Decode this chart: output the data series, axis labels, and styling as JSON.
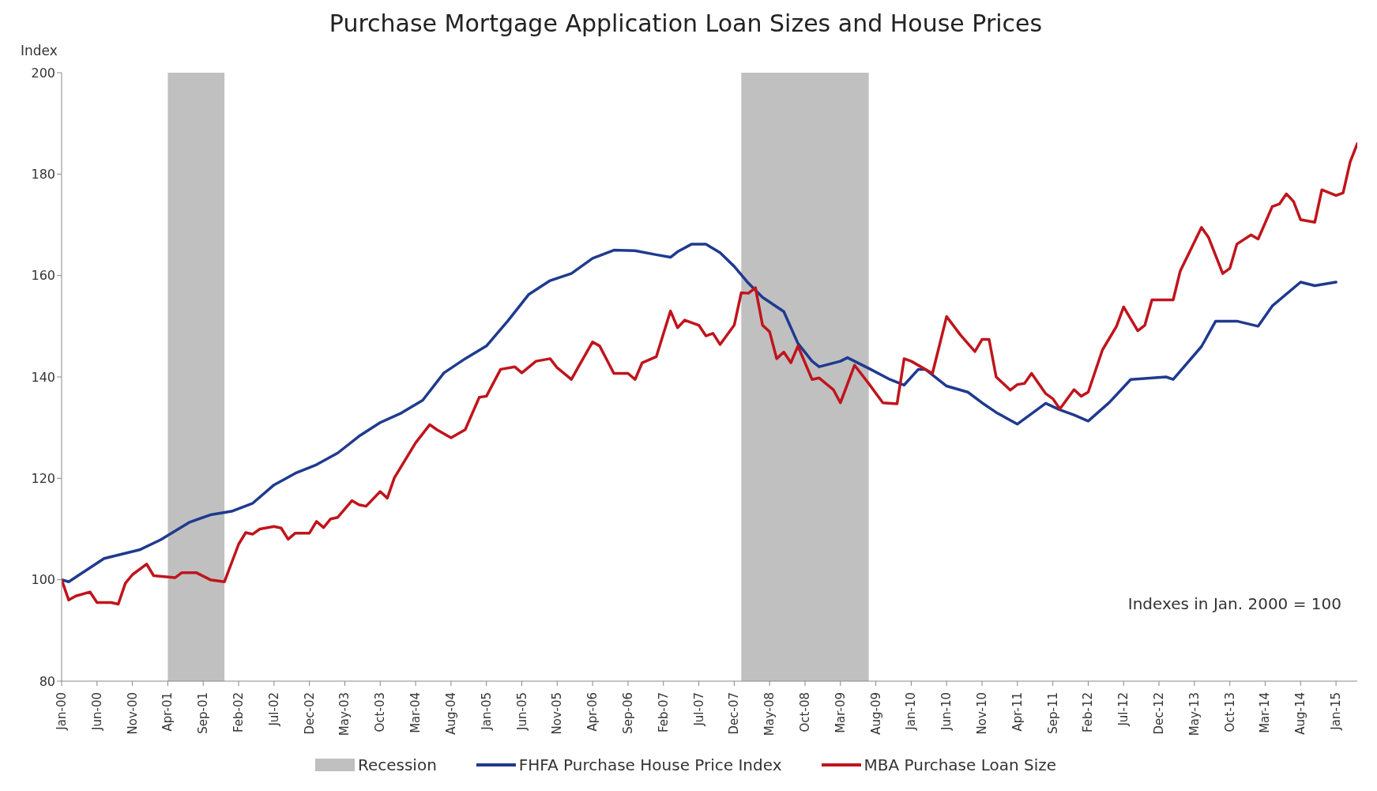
{
  "chart_data": {
    "type": "line",
    "title": "Purchase Mortgage Application Loan Sizes and House Prices",
    "ylabel": "Index",
    "xlim": [
      "2000-01",
      "2015-04"
    ],
    "xticks": [
      {
        "value": "2000-01",
        "label": "Jan-00"
      },
      {
        "value": "2000-06",
        "label": "Jun-00"
      },
      {
        "value": "2000-11",
        "label": "Nov-00"
      },
      {
        "value": "2001-04",
        "label": "Apr-01"
      },
      {
        "value": "2001-09",
        "label": "Sep-01"
      },
      {
        "value": "2002-02",
        "label": "Feb-02"
      },
      {
        "value": "2002-07",
        "label": "Jul-02"
      },
      {
        "value": "2002-12",
        "label": "Dec-02"
      },
      {
        "value": "2003-05",
        "label": "May-03"
      },
      {
        "value": "2003-10",
        "label": "Oct-03"
      },
      {
        "value": "2004-03",
        "label": "Mar-04"
      },
      {
        "value": "2004-08",
        "label": "Aug-04"
      },
      {
        "value": "2005-01",
        "label": "Jan-05"
      },
      {
        "value": "2005-06",
        "label": "Jun-05"
      },
      {
        "value": "2005-11",
        "label": "Nov-05"
      },
      {
        "value": "2006-04",
        "label": "Apr-06"
      },
      {
        "value": "2006-09",
        "label": "Sep-06"
      },
      {
        "value": "2007-02",
        "label": "Feb-07"
      },
      {
        "value": "2007-07",
        "label": "Jul-07"
      },
      {
        "value": "2007-12",
        "label": "Dec-07"
      },
      {
        "value": "2008-05",
        "label": "May-08"
      },
      {
        "value": "2008-10",
        "label": "Oct-08"
      },
      {
        "value": "2009-03",
        "label": "Mar-09"
      },
      {
        "value": "2009-08",
        "label": "Aug-09"
      },
      {
        "value": "2010-01",
        "label": "Jan-10"
      },
      {
        "value": "2010-06",
        "label": "Jun-10"
      },
      {
        "value": "2010-11",
        "label": "Nov-10"
      },
      {
        "value": "2011-04",
        "label": "Apr-11"
      },
      {
        "value": "2011-09",
        "label": "Sep-11"
      },
      {
        "value": "2012-02",
        "label": "Feb-12"
      },
      {
        "value": "2012-07",
        "label": "Jul-12"
      },
      {
        "value": "2012-12",
        "label": "Dec-12"
      },
      {
        "value": "2013-05",
        "label": "May-13"
      },
      {
        "value": "2013-10",
        "label": "Oct-13"
      },
      {
        "value": "2014-03",
        "label": "Mar-14"
      },
      {
        "value": "2014-08",
        "label": "Aug-14"
      },
      {
        "value": "2015-01",
        "label": "Jan-15"
      }
    ],
    "ylim": [
      80,
      200
    ],
    "yticks": [
      80,
      100,
      120,
      140,
      160,
      180,
      200
    ],
    "bands": [
      {
        "axis": "x",
        "from": "2001-04",
        "to": "2001-12",
        "label": "Recession",
        "color": "#c0c0c0"
      },
      {
        "axis": "x",
        "from": "2008-01",
        "to": "2009-07",
        "color": "#c0c0c0"
      }
    ],
    "series": [
      {
        "name": "FHFA Purchase House Price Index",
        "color": "#1f3a8f",
        "x": [
          "2000-01",
          "2000-02",
          "2000-07",
          "2000-12",
          "2001-03",
          "2001-07",
          "2001-10",
          "2002-01",
          "2002-04",
          "2002-07",
          "2002-10",
          "2003-01",
          "2003-04",
          "2003-07",
          "2003-10",
          "2004-01",
          "2004-04",
          "2004-07",
          "2004-10",
          "2005-01",
          "2005-04",
          "2005-07",
          "2005-10",
          "2006-01",
          "2006-04",
          "2006-07",
          "2006-10",
          "2007-01",
          "2007-03",
          "2007-04",
          "2007-06",
          "2007-08",
          "2007-10",
          "2007-12",
          "2008-02",
          "2008-04",
          "2008-07",
          "2008-09",
          "2008-11",
          "2008-12",
          "2009-03",
          "2009-04",
          "2009-07",
          "2009-10",
          "2009-12",
          "2010-02",
          "2010-03",
          "2010-06",
          "2010-09",
          "2010-11",
          "2011-01",
          "2011-04",
          "2011-08",
          "2011-10",
          "2011-12",
          "2012-02",
          "2012-05",
          "2012-08",
          "2013-01",
          "2013-02",
          "2013-06",
          "2013-08",
          "2013-11",
          "2014-02",
          "2014-04",
          "2014-08",
          "2014-10",
          "2015-01"
        ],
        "values": [
          100,
          99.6,
          104.2,
          105.9,
          107.9,
          111.3,
          112.8,
          113.5,
          115.1,
          118.7,
          121,
          122.7,
          125,
          128.3,
          131,
          132.9,
          135.4,
          140.8,
          143.6,
          146.1,
          151,
          156.3,
          159,
          160.4,
          163.4,
          165,
          164.9,
          164.1,
          163.6,
          164.7,
          166.2,
          166.2,
          164.5,
          161.8,
          158.5,
          155.7,
          152.9,
          146.6,
          143.1,
          142,
          143.1,
          143.8,
          141.7,
          139.5,
          138.4,
          141.5,
          141.5,
          138.2,
          137,
          134.9,
          133,
          130.7,
          134.8,
          133.5,
          132.5,
          131.3,
          135,
          139.5,
          140,
          139.5,
          146,
          151,
          151,
          150,
          154,
          158.7,
          158,
          158.7
        ]
      },
      {
        "name": "MBA Purchase Loan Size",
        "color": "#c0141c",
        "x": [
          "2000-01",
          "2000-02",
          "2000-03",
          "2000-05",
          "2000-06",
          "2000-08",
          "2000-09",
          "2000-10",
          "2000-11",
          "2001-01",
          "2001-02",
          "2001-05",
          "2001-06",
          "2001-08",
          "2001-10",
          "2001-12",
          "2002-02",
          "2002-03",
          "2002-04",
          "2002-05",
          "2002-07",
          "2002-08",
          "2002-09",
          "2002-10",
          "2002-12",
          "2003-01",
          "2003-02",
          "2003-03",
          "2003-04",
          "2003-06",
          "2003-07",
          "2003-08",
          "2003-10",
          "2003-11",
          "2003-12",
          "2004-03",
          "2004-05",
          "2004-06",
          "2004-08",
          "2004-10",
          "2004-12",
          "2005-01",
          "2005-03",
          "2005-05",
          "2005-06",
          "2005-08",
          "2005-10",
          "2005-11",
          "2006-01",
          "2006-02",
          "2006-04",
          "2006-05",
          "2006-07",
          "2006-09",
          "2006-10",
          "2006-11",
          "2007-01",
          "2007-03",
          "2007-04",
          "2007-05",
          "2007-07",
          "2007-08",
          "2007-09",
          "2007-10",
          "2007-12",
          "2008-01",
          "2008-02",
          "2008-03",
          "2008-04",
          "2008-05",
          "2008-06",
          "2008-07",
          "2008-08",
          "2008-09",
          "2008-11",
          "2008-12",
          "2009-02",
          "2009-03",
          "2009-05",
          "2009-07",
          "2009-09",
          "2009-11",
          "2009-12",
          "2010-01",
          "2010-04",
          "2010-06",
          "2010-08",
          "2010-10",
          "2010-11",
          "2010-12",
          "2011-01",
          "2011-03",
          "2011-04",
          "2011-05",
          "2011-06",
          "2011-08",
          "2011-09",
          "2011-10",
          "2011-12",
          "2012-01",
          "2012-02",
          "2012-04",
          "2012-06",
          "2012-07",
          "2012-09",
          "2012-10",
          "2012-11",
          "2013-02",
          "2013-03",
          "2013-06",
          "2013-07",
          "2013-09",
          "2013-10",
          "2013-11",
          "2014-01",
          "2014-02",
          "2014-04",
          "2014-05",
          "2014-06",
          "2014-07",
          "2014-08",
          "2014-10",
          "2014-11",
          "2015-01",
          "2015-02",
          "2015-03",
          "2015-04"
        ],
        "values": [
          100,
          96,
          96.8,
          97.6,
          95.5,
          95.5,
          95.2,
          99.3,
          101,
          103.1,
          100.8,
          100.4,
          101.4,
          101.4,
          100,
          99.6,
          107,
          109.3,
          109,
          110,
          110.5,
          110.2,
          108,
          109.2,
          109.2,
          111.5,
          110.3,
          112,
          112.3,
          115.6,
          114.8,
          114.5,
          117.4,
          116.1,
          120.1,
          127,
          130.6,
          129.6,
          128,
          129.6,
          136,
          136.2,
          141.5,
          142,
          140.8,
          143.1,
          143.6,
          141.8,
          139.5,
          142,
          146.9,
          146.1,
          140.7,
          140.7,
          139.5,
          142.8,
          144,
          153,
          149.7,
          151.2,
          150.2,
          148.1,
          148.6,
          146.4,
          150.2,
          156.6,
          156.5,
          157.6,
          150.2,
          148.9,
          143.6,
          144.9,
          142.8,
          146.1,
          139.5,
          139.8,
          137.5,
          134.9,
          142.3,
          138.7,
          134.9,
          134.7,
          143.6,
          143.1,
          140.7,
          151.9,
          148.2,
          145,
          147.4,
          147.4,
          140,
          137.4,
          138.5,
          138.7,
          140.7,
          136.7,
          135.7,
          133.7,
          137.5,
          136.2,
          137,
          145.3,
          150,
          153.8,
          149.1,
          150.2,
          155.2,
          155.2,
          160.9,
          169.5,
          167.5,
          160.4,
          161.4,
          166.2,
          168,
          167.2,
          173.6,
          174.1,
          176.1,
          174.6,
          171,
          170.5,
          176.9,
          175.8,
          176.3,
          182.4,
          186
        ]
      }
    ],
    "annotations": [
      "Indexes in Jan. 2000 = 100"
    ],
    "legend": "bottom"
  }
}
